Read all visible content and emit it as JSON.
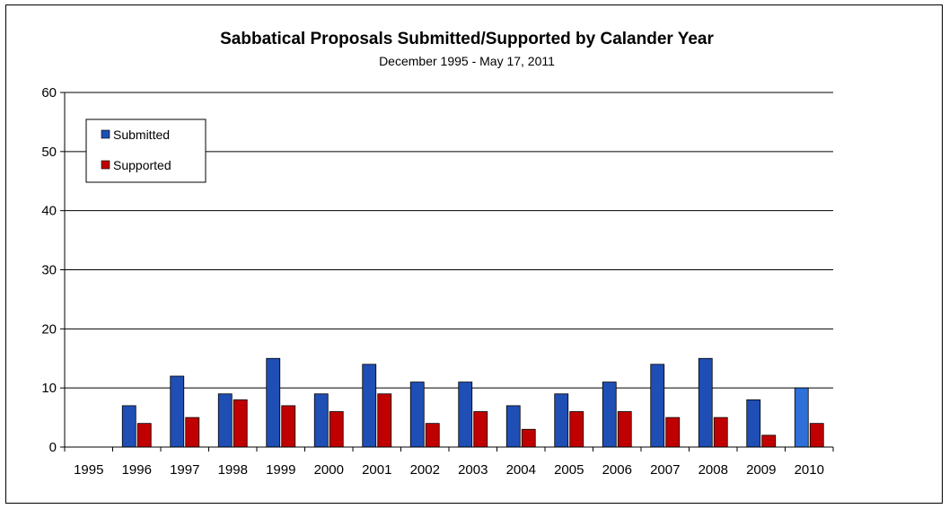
{
  "chart_data": {
    "type": "bar",
    "title": "Sabbatical Proposals Submitted/Supported by Calander Year",
    "subtitle": "December 1995 - May 17, 2011",
    "xlabel": "",
    "ylabel": "",
    "categories": [
      "1995",
      "1996",
      "1997",
      "1998",
      "1999",
      "2000",
      "2001",
      "2002",
      "2003",
      "2004",
      "2005",
      "2006",
      "2007",
      "2008",
      "2009",
      "2010"
    ],
    "series": [
      {
        "name": "Submitted",
        "color": "#1F4EB4",
        "values": [
          0,
          7,
          12,
          9,
          15,
          9,
          14,
          11,
          11,
          7,
          9,
          11,
          14,
          15,
          8,
          10
        ]
      },
      {
        "name": "Supported",
        "color": "#C00000",
        "values": [
          0,
          4,
          5,
          8,
          7,
          6,
          9,
          4,
          6,
          3,
          6,
          6,
          5,
          5,
          2,
          4
        ]
      }
    ],
    "highlight": {
      "series": "Submitted",
      "category": "2010",
      "color": "#2E6FD8"
    },
    "ylim": [
      0,
      60
    ],
    "yticks": [
      0,
      10,
      20,
      30,
      40,
      50,
      60
    ],
    "grid": true,
    "legend_position": "top-left"
  }
}
